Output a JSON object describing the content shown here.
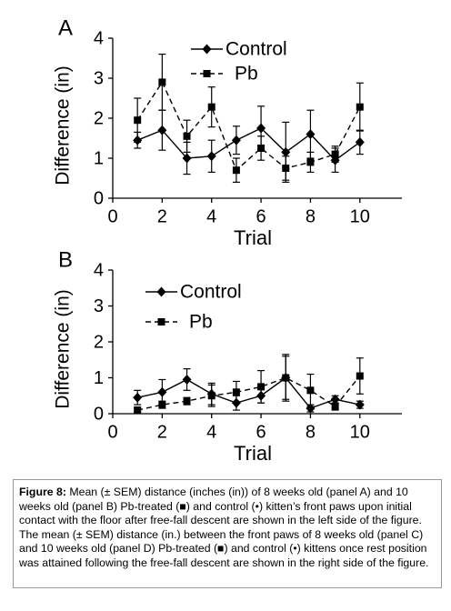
{
  "chart_data": [
    {
      "type": "line",
      "panel": "A",
      "ylabel": "Difference (in)",
      "xlabel": "Trial",
      "x": [
        1,
        2,
        3,
        4,
        5,
        6,
        7,
        8,
        9,
        10
      ],
      "xlim": [
        0,
        11.7
      ],
      "xticks": [
        0,
        2,
        4,
        6,
        8,
        10
      ],
      "ylim": [
        0,
        4
      ],
      "yticks": [
        0,
        1,
        2,
        3,
        4
      ],
      "legend": "top",
      "series": [
        {
          "name": "Control",
          "color": "#000000",
          "linestyle": "solid",
          "marker": "diamond",
          "values": [
            1.45,
            1.7,
            1.0,
            1.05,
            1.45,
            1.75,
            1.15,
            1.6,
            0.95,
            1.4
          ],
          "error": [
            0.2,
            0.5,
            0.4,
            0.4,
            0.35,
            0.55,
            0.75,
            0.6,
            0.3,
            0.3
          ]
        },
        {
          "name": "Pb",
          "color": "#000000",
          "linestyle": "dashed",
          "marker": "square",
          "values": [
            1.95,
            2.9,
            1.55,
            2.28,
            0.7,
            1.25,
            0.75,
            0.9,
            1.1,
            2.28
          ],
          "error": [
            0.55,
            0.7,
            0.4,
            0.5,
            0.3,
            0.3,
            0.3,
            0.25,
            0.2,
            0.6
          ]
        }
      ]
    },
    {
      "type": "line",
      "panel": "B",
      "ylabel": "Difference (in)",
      "xlabel": "Trial",
      "x": [
        1,
        2,
        3,
        4,
        5,
        6,
        7,
        8,
        9,
        10
      ],
      "xlim": [
        0,
        11.7
      ],
      "xticks": [
        0,
        2,
        4,
        6,
        8,
        10
      ],
      "ylim": [
        0,
        4
      ],
      "yticks": [
        0,
        1,
        2,
        3,
        4
      ],
      "legend": "top",
      "series": [
        {
          "name": "Control",
          "color": "#000000",
          "linestyle": "solid",
          "marker": "diamond",
          "values": [
            0.45,
            0.6,
            0.95,
            0.55,
            0.3,
            0.5,
            1.0,
            0.15,
            0.4,
            0.25
          ],
          "error": [
            0.2,
            0.35,
            0.3,
            0.3,
            0.2,
            0.2,
            0.6,
            0.1,
            0.1,
            0.1
          ]
        },
        {
          "name": "Pb",
          "color": "#000000",
          "linestyle": "dashed",
          "marker": "square",
          "values": [
            0.1,
            0.25,
            0.35,
            0.5,
            0.6,
            0.75,
            1.0,
            0.65,
            0.2,
            1.05
          ],
          "error": [
            0.05,
            0.1,
            0.1,
            0.3,
            0.3,
            0.45,
            0.65,
            0.45,
            0.1,
            0.5
          ]
        }
      ]
    }
  ],
  "caption": {
    "label": "Figure 8:",
    "text": "Mean (± SEM) distance (inches (in)) of 8 weeks old (panel A) and 10 weeks old (panel B) Pb-treated (■) and control (•) kitten’s front paws upon initial contact with the floor after free-fall descent are shown in the left side of the figure. The mean (± SEM) distance (in.) between the front paws of 8 weeks old (panel C) and 10 weeks old (panel D) Pb-treated (■) and control (•) kittens once rest position was attained following the free-fall descent are shown in the right side of the figure."
  }
}
